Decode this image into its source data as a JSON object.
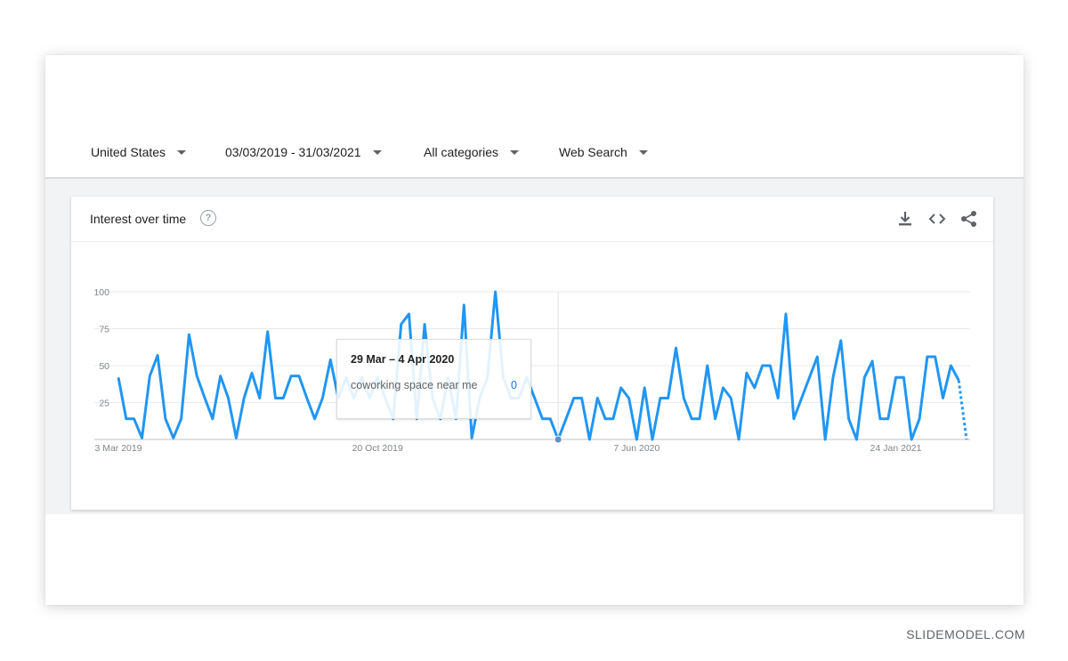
{
  "filters": {
    "region": "United States",
    "date_range": "03/03/2019 - 31/03/2021",
    "category": "All categories",
    "search_type": "Web Search"
  },
  "card": {
    "title": "Interest over time",
    "help_glyph": "?",
    "icons": [
      "download-icon",
      "embed-code-icon",
      "share-icon"
    ]
  },
  "tooltip": {
    "date": "29 Mar – 4 Apr 2020",
    "term": "coworking space near me",
    "value": "0"
  },
  "watermark": "SLIDEMODEL.COM",
  "colors": {
    "series": "#2196f3",
    "grid": "#e8eaed",
    "accent": "#1a73e8"
  },
  "chart_data": {
    "type": "line",
    "ylim": [
      0,
      100
    ],
    "yticks": [
      25,
      50,
      75,
      100
    ],
    "x_labels": [
      "3 Mar 2019",
      "20 Oct 2019",
      "7 Jun 2020",
      "24 Jan 2021"
    ],
    "x_label_indices": [
      0,
      33,
      66,
      99
    ],
    "highlight_index": 56,
    "partial_from_index": 107,
    "series": [
      {
        "values": [
          42,
          14,
          14,
          1,
          43,
          57,
          14,
          1,
          14,
          71,
          43,
          28,
          14,
          43,
          28,
          1,
          28,
          45,
          28,
          73,
          28,
          28,
          43,
          43,
          28,
          14,
          28,
          54,
          28,
          42,
          28,
          42,
          28,
          42,
          28,
          14,
          78,
          85,
          14,
          78,
          28,
          14,
          42,
          14,
          91,
          1,
          28,
          42,
          100,
          42,
          28,
          28,
          42,
          28,
          14,
          14,
          0,
          14,
          28,
          28,
          0,
          28,
          14,
          14,
          35,
          28,
          0,
          35,
          0,
          28,
          28,
          62,
          28,
          14,
          14,
          50,
          14,
          35,
          28,
          0,
          45,
          35,
          50,
          50,
          28,
          85,
          14,
          28,
          42,
          56,
          0,
          42,
          67,
          14,
          0,
          42,
          53,
          14,
          14,
          42,
          42,
          0,
          14,
          56,
          56,
          28,
          50,
          40,
          0
        ]
      }
    ]
  }
}
